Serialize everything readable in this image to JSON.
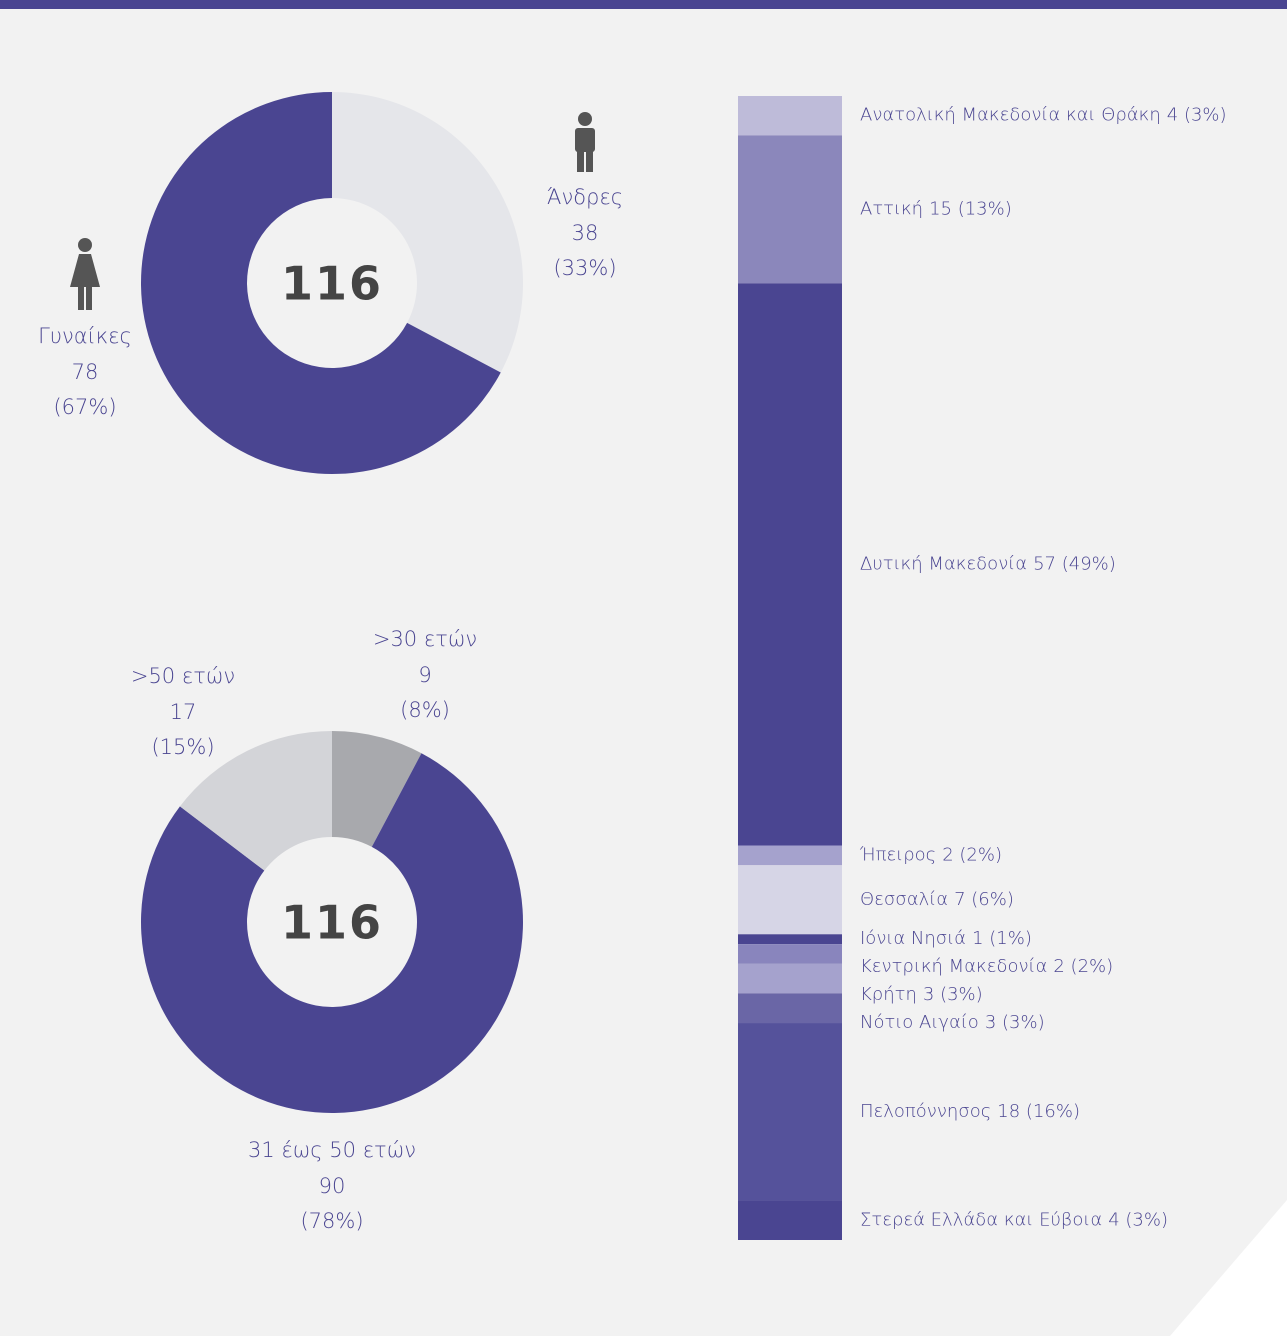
{
  "chart_data": [
    {
      "type": "pie",
      "total": 116,
      "categories": [
        "Άνδρες",
        "Γυναίκες"
      ],
      "values": [
        38,
        78
      ],
      "share_labels": [
        "(33%)",
        "(67%)"
      ],
      "colors": [
        "#e5e6ea",
        "#4a4591"
      ]
    },
    {
      "type": "pie",
      "total": 116,
      "categories": [
        ">30 ετών",
        "31 έως 50 ετών",
        ">50 ετών"
      ],
      "values": [
        9,
        90,
        17
      ],
      "share_labels": [
        "(8%)",
        "(78%)",
        "(15%)"
      ],
      "colors": [
        "#a8a9ad",
        "#4a4591",
        "#d3d4d8"
      ]
    },
    {
      "type": "bar",
      "stacked": true,
      "categories": [
        "Ανατολική Μακεδονία και Θράκη",
        "Αττική",
        "Δυτική Μακεδονία",
        "Ήπειρος",
        "Θεσσαλία",
        "Ιόνια Νησιά",
        "Κεντρική Μακεδονία",
        "Κρήτη",
        "Νότιο Αιγαίο",
        "Πελοπόννησος",
        "Στερεά Ελλάδα και Εύβοια"
      ],
      "values": [
        4,
        15,
        57,
        2,
        7,
        1,
        2,
        3,
        3,
        18,
        4
      ],
      "value_labels": [
        "4 (3%)",
        "15 (13%)",
        "57 (49%)",
        "2 (2%)",
        "7 (6%)",
        "1 (1%)",
        "2 (2%)",
        "3 (3%)",
        "3 (3%)",
        "18 (16%)",
        "4 (3%)"
      ],
      "colors": [
        "#bebbd9",
        "#8b87bb",
        "#4a4591",
        "#a5a2cd",
        "#d6d5e6",
        "#4a4591",
        "#8985bd",
        "#a5a2cd",
        "#6a66a6",
        "#55529b",
        "#4a4591"
      ]
    }
  ]
}
